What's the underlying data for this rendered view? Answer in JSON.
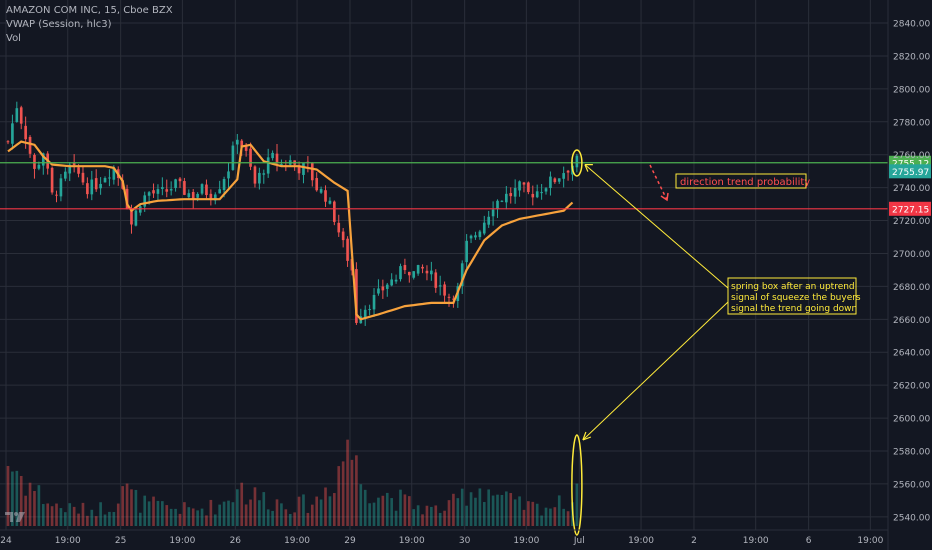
{
  "header": {
    "symbol_line": "AMAZON COM INC, 15, Cboe BZX",
    "indicator_line": "VWAP (Session, hlc3)",
    "volume_line": "Vol"
  },
  "colors": {
    "background": "#131722",
    "grid": "#2a2e39",
    "axis_text": "#b2b5be",
    "candle_up": "#26a69a",
    "candle_down": "#ef5350",
    "vwap": "#f7a23c",
    "resistance_line": "#4caf50",
    "support_line": "#f23645",
    "annotation": "#ffeb3b",
    "annotation_text_red": "#ff4f4f"
  },
  "chart_data": {
    "type": "candlestick",
    "title": "AMAZON COM INC, 15, Cboe BZX",
    "price_axis": {
      "ticks": [
        2540,
        2560,
        2580,
        2600,
        2620,
        2640,
        2660,
        2680,
        2700,
        2720,
        2740,
        2760,
        2780,
        2800,
        2820,
        2840
      ],
      "tick_labels": [
        "2540.00",
        "2560.00",
        "2580.00",
        "2600.00",
        "2620.00",
        "2640.00",
        "2660.00",
        "2680.00",
        "2700.00",
        "2720.00",
        "2740.00",
        "2760.00",
        "2780.00",
        "2800.00",
        "2820.00",
        "2840.00"
      ],
      "range": [
        2532,
        2854
      ]
    },
    "time_axis": {
      "labels": [
        "24",
        "19:00",
        "25",
        "19:00",
        "26",
        "19:00",
        "29",
        "19:00",
        "30",
        "19:00",
        "Jul",
        "19:00",
        "2",
        "19:00",
        "6",
        "19:00"
      ],
      "label_positions_bars": [
        0,
        14,
        26,
        40,
        52,
        66,
        78,
        92,
        104,
        118,
        130,
        144,
        156,
        170,
        182,
        196
      ],
      "bars_total": 200,
      "last_bar_index": 129
    },
    "horizontal_lines": [
      {
        "name": "resistance",
        "price": 2755.12,
        "label": "2755.12",
        "color": "#4caf50"
      },
      {
        "name": "support",
        "price": 2727.15,
        "label": "2727.15",
        "color": "#f23645"
      }
    ],
    "last_price_label": "2755.97",
    "series_anchor_points": {
      "close": [
        [
          0,
          2768
        ],
        [
          2,
          2790
        ],
        [
          4,
          2772
        ],
        [
          6,
          2750
        ],
        [
          8,
          2762
        ],
        [
          10,
          2735
        ],
        [
          12,
          2742
        ],
        [
          14,
          2752
        ],
        [
          16,
          2748
        ],
        [
          18,
          2740
        ],
        [
          20,
          2742
        ],
        [
          22,
          2748
        ],
        [
          24,
          2752
        ],
        [
          26,
          2742
        ],
        [
          28,
          2718
        ],
        [
          30,
          2732
        ],
        [
          32,
          2737
        ],
        [
          34,
          2736
        ],
        [
          36,
          2738
        ],
        [
          38,
          2742
        ],
        [
          40,
          2738
        ],
        [
          42,
          2735
        ],
        [
          44,
          2739
        ],
        [
          46,
          2736
        ],
        [
          48,
          2742
        ],
        [
          50,
          2752
        ],
        [
          52,
          2772
        ],
        [
          54,
          2760
        ],
        [
          56,
          2742
        ],
        [
          58,
          2752
        ],
        [
          60,
          2758
        ],
        [
          62,
          2754
        ],
        [
          64,
          2756
        ],
        [
          66,
          2752
        ],
        [
          68,
          2752
        ],
        [
          70,
          2740
        ],
        [
          72,
          2735
        ],
        [
          74,
          2722
        ],
        [
          76,
          2705
        ],
        [
          78,
          2690
        ],
        [
          79,
          2660
        ],
        [
          80,
          2665
        ],
        [
          82,
          2670
        ],
        [
          84,
          2675
        ],
        [
          86,
          2682
        ],
        [
          88,
          2685
        ],
        [
          90,
          2692
        ],
        [
          92,
          2688
        ],
        [
          94,
          2690
        ],
        [
          96,
          2686
        ],
        [
          98,
          2680
        ],
        [
          100,
          2674
        ],
        [
          102,
          2678
        ],
        [
          104,
          2705
        ],
        [
          106,
          2712
        ],
        [
          108,
          2720
        ],
        [
          110,
          2730
        ],
        [
          112,
          2734
        ],
        [
          114,
          2736
        ],
        [
          116,
          2740
        ],
        [
          118,
          2736
        ],
        [
          120,
          2738
        ],
        [
          122,
          2742
        ],
        [
          124,
          2745
        ],
        [
          126,
          2750
        ],
        [
          128,
          2754
        ],
        [
          129,
          2756
        ]
      ],
      "vwap": [
        [
          0,
          2762
        ],
        [
          3,
          2768
        ],
        [
          6,
          2766
        ],
        [
          8,
          2759
        ],
        [
          10,
          2754
        ],
        [
          14,
          2753
        ],
        [
          18,
          2753
        ],
        [
          22,
          2753
        ],
        [
          24,
          2752
        ],
        [
          26,
          2744
        ],
        [
          27,
          2730
        ],
        [
          28,
          2726
        ],
        [
          30,
          2730
        ],
        [
          34,
          2732
        ],
        [
          40,
          2733
        ],
        [
          48,
          2733
        ],
        [
          52,
          2745
        ],
        [
          53,
          2765
        ],
        [
          55,
          2766
        ],
        [
          58,
          2756
        ],
        [
          62,
          2753
        ],
        [
          66,
          2753
        ],
        [
          70,
          2751
        ],
        [
          74,
          2743
        ],
        [
          77,
          2738
        ],
        [
          78,
          2700
        ],
        [
          79,
          2663
        ],
        [
          80,
          2660
        ],
        [
          84,
          2663
        ],
        [
          90,
          2668
        ],
        [
          96,
          2670
        ],
        [
          101,
          2670
        ],
        [
          104,
          2690
        ],
        [
          108,
          2708
        ],
        [
          112,
          2717
        ],
        [
          116,
          2721
        ],
        [
          122,
          2724
        ],
        [
          126,
          2726
        ],
        [
          128,
          2731
        ]
      ],
      "volume": [
        [
          0,
          55
        ],
        [
          2,
          48
        ],
        [
          4,
          40
        ],
        [
          6,
          32
        ],
        [
          8,
          25
        ],
        [
          10,
          18
        ],
        [
          14,
          15
        ],
        [
          18,
          14
        ],
        [
          22,
          16
        ],
        [
          24,
          20
        ],
        [
          26,
          38
        ],
        [
          27,
          30
        ],
        [
          30,
          20
        ],
        [
          36,
          16
        ],
        [
          42,
          14
        ],
        [
          48,
          18
        ],
        [
          51,
          28
        ],
        [
          52,
          40
        ],
        [
          54,
          28
        ],
        [
          58,
          24
        ],
        [
          62,
          20
        ],
        [
          66,
          18
        ],
        [
          70,
          22
        ],
        [
          73,
          38
        ],
        [
          76,
          58
        ],
        [
          77,
          80
        ],
        [
          78,
          62
        ],
        [
          80,
          40
        ],
        [
          84,
          30
        ],
        [
          88,
          24
        ],
        [
          92,
          18
        ],
        [
          96,
          14
        ],
        [
          100,
          16
        ],
        [
          104,
          30
        ],
        [
          108,
          34
        ],
        [
          112,
          24
        ],
        [
          116,
          18
        ],
        [
          120,
          16
        ],
        [
          124,
          18
        ],
        [
          128,
          22
        ],
        [
          129,
          40
        ]
      ]
    }
  },
  "annotations": {
    "direction_label": "direction trend probability",
    "spring_note_line1": "spring box after an uptrend",
    "spring_note_line2": "signal of squeeze the buyers",
    "spring_note_line3": "signal the trend going down"
  }
}
